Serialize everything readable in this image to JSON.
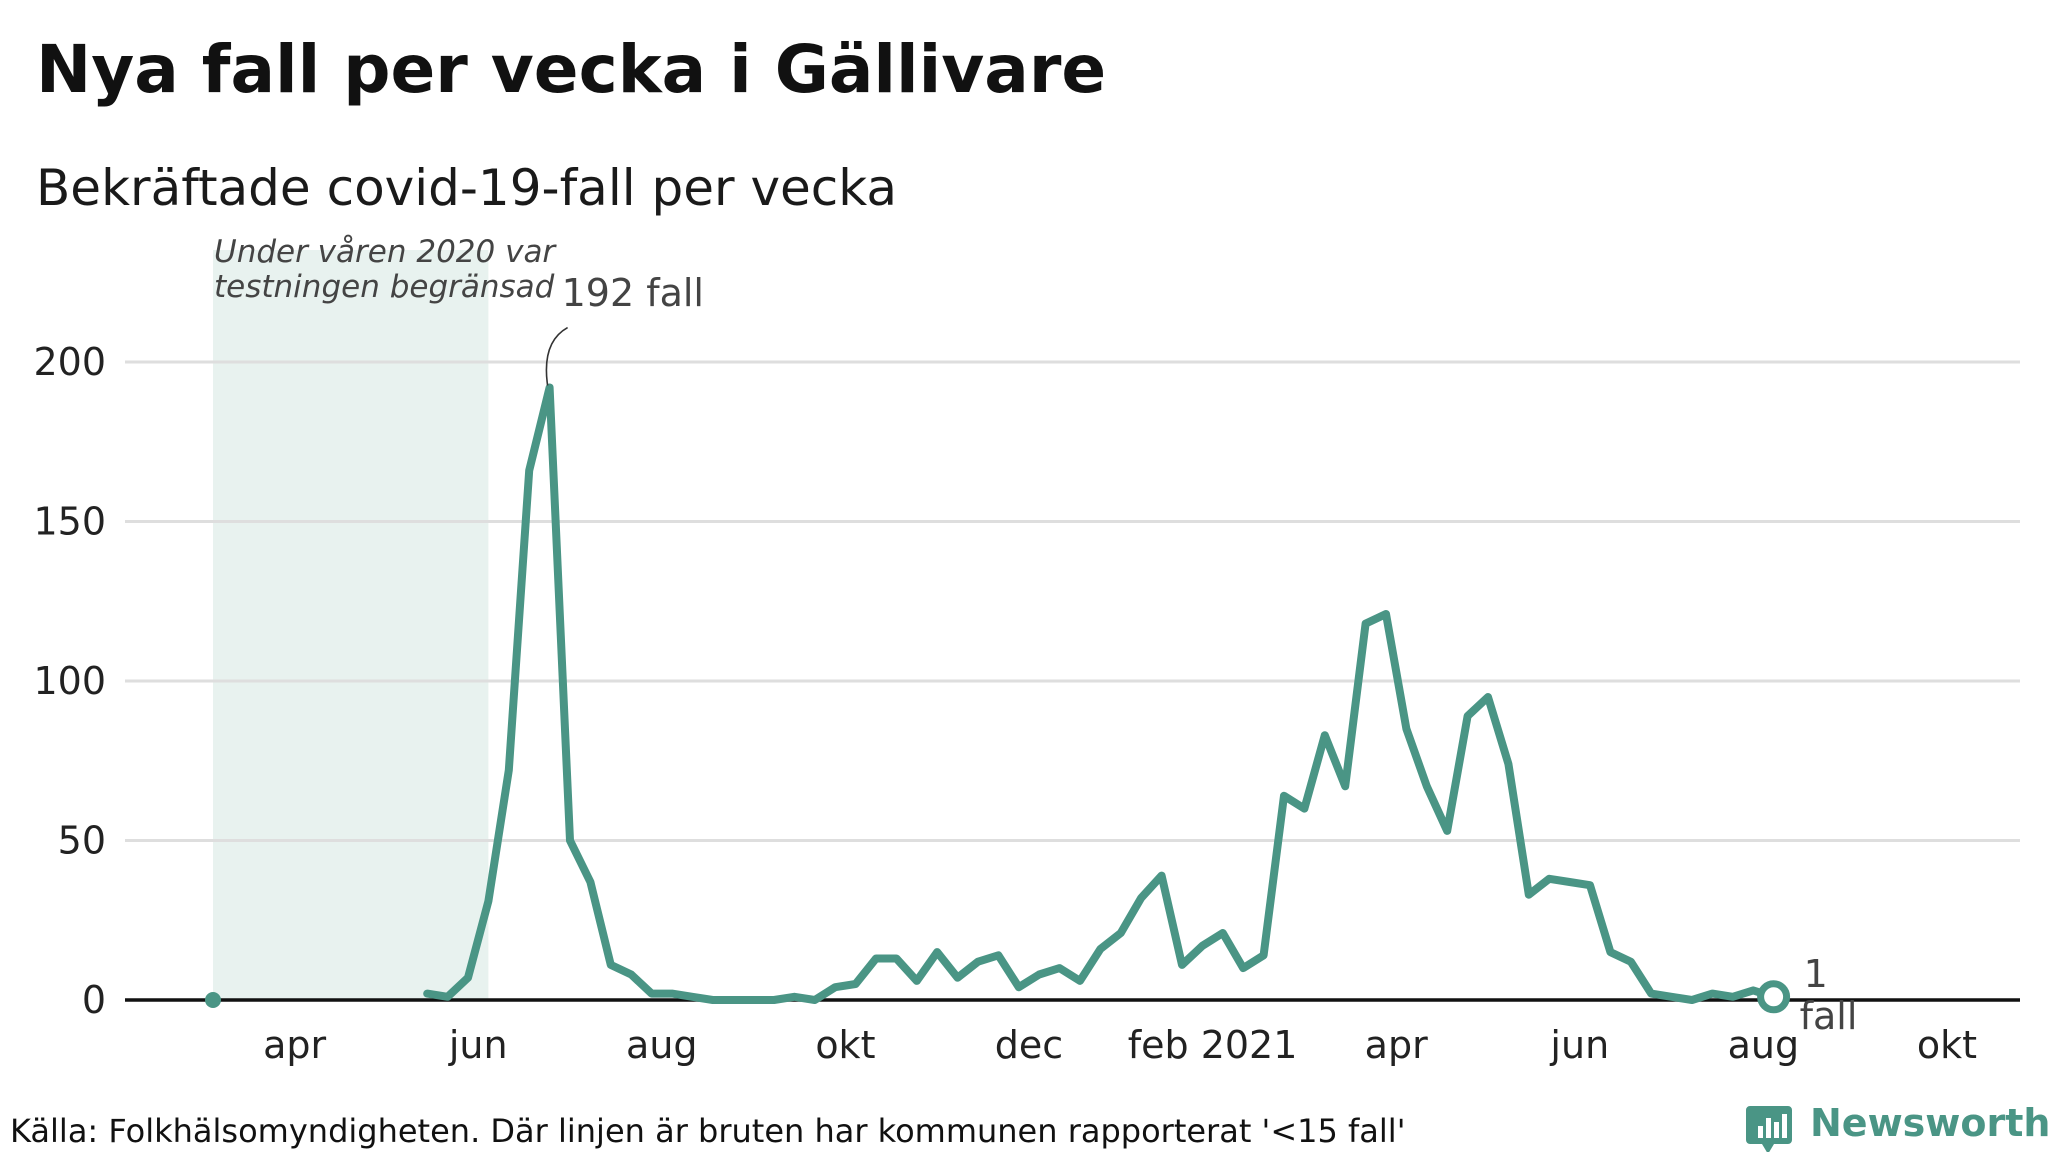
{
  "title": "Nya fall per vecka i Gällivare",
  "subtitle": "Bekräftade covid-19-fall per vecka",
  "annotation": {
    "line1": "Under våren 2020 var",
    "line2": "testningen begränsad"
  },
  "peak_label": "192 fall",
  "end_label": {
    "line1": "1",
    "line2": "fall"
  },
  "source": "Källa: Folkhälsomyndigheten. Där linjen är bruten har kommunen rapporterat '<15 fall'",
  "brand": "Newsworthy",
  "colors": {
    "line": "#4a9585",
    "shade": "#e8f2ef",
    "grid": "#dedede",
    "axis": "#111111"
  },
  "chart_data": {
    "type": "line",
    "title": "Nya fall per vecka i Gällivare",
    "subtitle": "Bekräftade covid-19-fall per vecka",
    "xlabel": "",
    "ylabel": "",
    "ylim": [
      0,
      240
    ],
    "xlim_weeks": [
      0,
      89
    ],
    "y_ticks": [
      0,
      50,
      100,
      150,
      200
    ],
    "x_ticks": [
      {
        "label": "apr",
        "week": 4
      },
      {
        "label": "jun",
        "week": 13
      },
      {
        "label": "aug",
        "week": 22
      },
      {
        "label": "okt",
        "week": 31
      },
      {
        "label": "dec",
        "week": 40
      },
      {
        "label": "feb 2021",
        "week": 49
      },
      {
        "label": "apr",
        "week": 58
      },
      {
        "label": "jun",
        "week": 67
      },
      {
        "label": "aug",
        "week": 76
      },
      {
        "label": "okt",
        "week": 85
      }
    ],
    "shaded_region_weeks": [
      0,
      13.5
    ],
    "grid": true,
    "legend": "none",
    "series": [
      {
        "segments": [
          [
            [
              0,
              0
            ]
          ],
          [
            [
              10.5,
              2
            ],
            [
              11.5,
              1
            ],
            [
              12.5,
              7
            ],
            [
              13.5,
              31
            ],
            [
              14.5,
              72
            ],
            [
              15.5,
              166
            ],
            [
              16.5,
              192
            ],
            [
              17.5,
              50
            ],
            [
              18.5,
              37
            ],
            [
              19.5,
              11
            ],
            [
              20.5,
              8
            ],
            [
              21.5,
              2
            ],
            [
              22.5,
              2
            ],
            [
              23.5,
              1
            ],
            [
              24.5,
              0
            ],
            [
              25.5,
              0
            ],
            [
              26.5,
              0
            ],
            [
              27.5,
              0
            ],
            [
              28.5,
              1
            ],
            [
              29.5,
              0
            ],
            [
              30.5,
              4
            ],
            [
              31.5,
              5
            ],
            [
              32.5,
              13
            ],
            [
              33.5,
              13
            ],
            [
              34.5,
              6
            ],
            [
              35.5,
              15
            ],
            [
              36.5,
              7
            ],
            [
              37.5,
              12
            ],
            [
              38.5,
              14
            ],
            [
              39.5,
              4
            ],
            [
              40.5,
              8
            ],
            [
              41.5,
              10
            ],
            [
              42.5,
              6
            ],
            [
              43.5,
              16
            ],
            [
              44.5,
              21
            ],
            [
              45.5,
              32
            ],
            [
              46.5,
              39
            ],
            [
              47.5,
              11
            ],
            [
              48.5,
              17
            ],
            [
              49.5,
              21
            ],
            [
              50.5,
              10
            ],
            [
              51.5,
              14
            ],
            [
              52.5,
              64
            ],
            [
              53.5,
              60
            ],
            [
              54.5,
              83
            ],
            [
              55.5,
              67
            ],
            [
              56.5,
              118
            ],
            [
              57.5,
              121
            ],
            [
              58.5,
              85
            ],
            [
              59.5,
              67
            ],
            [
              60.5,
              53
            ],
            [
              61.5,
              89
            ],
            [
              62.5,
              95
            ],
            [
              63.5,
              74
            ],
            [
              64.5,
              33
            ],
            [
              65.5,
              38
            ],
            [
              66.5,
              37
            ],
            [
              67.5,
              36
            ],
            [
              68.5,
              15
            ],
            [
              69.5,
              12
            ],
            [
              70.5,
              2
            ],
            [
              71.5,
              1
            ],
            [
              72.5,
              0
            ],
            [
              73.5,
              2
            ],
            [
              74.5,
              1
            ],
            [
              75.5,
              3
            ],
            [
              76.5,
              1
            ]
          ]
        ],
        "peak": {
          "week": 16.5,
          "value": 192
        },
        "last": {
          "week": 76.5,
          "value": 1
        }
      }
    ]
  }
}
